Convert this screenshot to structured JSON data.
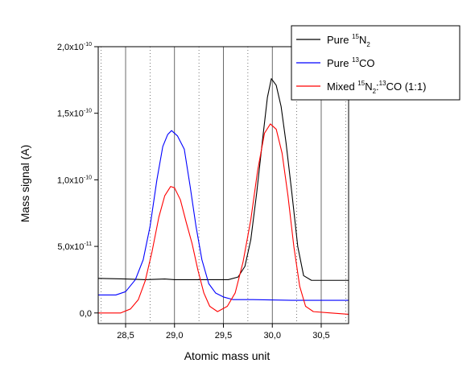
{
  "chart_data": {
    "type": "line",
    "title": "",
    "xlabel": "Atomic mass unit",
    "ylabel": "Mass signal (A)",
    "xlim": [
      28.22,
      30.78
    ],
    "ylim": [
      -8e-12,
      2e-10
    ],
    "x_ticks": [
      {
        "value": 28.5,
        "label": "28,5"
      },
      {
        "value": 29.0,
        "label": "29,0"
      },
      {
        "value": 29.5,
        "label": "29,5"
      },
      {
        "value": 30.0,
        "label": "30,0"
      },
      {
        "value": 30.5,
        "label": "30,5"
      }
    ],
    "y_ticks": [
      {
        "value": 0,
        "mantissa": "0,0",
        "exponent": ""
      },
      {
        "value": 5e-11,
        "mantissa": "5,0x10",
        "exponent": "-11"
      },
      {
        "value": 1e-10,
        "mantissa": "1,0x10",
        "exponent": "-10"
      },
      {
        "value": 1.5e-10,
        "mantissa": "1,5x10",
        "exponent": "-10"
      },
      {
        "value": 2e-10,
        "mantissa": "2,0x10",
        "exponent": "-10"
      }
    ],
    "grid": {
      "major_solid_x": [
        28.5,
        29.0,
        29.5,
        30.0,
        30.5
      ],
      "minor_dotted_x": [
        28.25,
        28.75,
        29.25,
        29.75,
        30.25,
        30.75
      ]
    },
    "legend": {
      "placement": "top-right",
      "entries": [
        {
          "parts": [
            {
              "t": "Pure "
            },
            {
              "t": "15",
              "sup": true
            },
            {
              "t": "N"
            },
            {
              "t": "2",
              "sub": true
            }
          ]
        },
        {
          "parts": [
            {
              "t": "Pure "
            },
            {
              "t": "13",
              "sup": true
            },
            {
              "t": "CO"
            }
          ]
        },
        {
          "parts": [
            {
              "t": "Mixed "
            },
            {
              "t": "15",
              "sup": true
            },
            {
              "t": "N"
            },
            {
              "t": "2",
              "sub": true
            },
            {
              "t": ":"
            },
            {
              "t": "13",
              "sup": true
            },
            {
              "t": "CO (1:1)"
            }
          ]
        }
      ]
    },
    "series": [
      {
        "color": "#000000",
        "points": [
          [
            28.22,
            2.6e-11
          ],
          [
            28.5,
            2.55e-11
          ],
          [
            28.7,
            2.5e-11
          ],
          [
            28.9,
            2.55e-11
          ],
          [
            29.0,
            2.5e-11
          ],
          [
            29.2,
            2.5e-11
          ],
          [
            29.4,
            2.5e-11
          ],
          [
            29.55,
            2.5e-11
          ],
          [
            29.65,
            2.7e-11
          ],
          [
            29.72,
            3.5e-11
          ],
          [
            29.78,
            5.5e-11
          ],
          [
            29.84,
            9e-11
          ],
          [
            29.9,
            1.3e-10
          ],
          [
            29.95,
            1.62e-10
          ],
          [
            29.99,
            1.76e-10
          ],
          [
            30.04,
            1.71e-10
          ],
          [
            30.09,
            1.55e-10
          ],
          [
            30.14,
            1.28e-10
          ],
          [
            30.2,
            9e-11
          ],
          [
            30.26,
            5e-11
          ],
          [
            30.32,
            2.8e-11
          ],
          [
            30.4,
            2.45e-11
          ],
          [
            30.6,
            2.45e-11
          ],
          [
            30.78,
            2.45e-11
          ]
        ]
      },
      {
        "color": "#0000ff",
        "points": [
          [
            28.22,
            1.35e-11
          ],
          [
            28.4,
            1.35e-11
          ],
          [
            28.5,
            1.6e-11
          ],
          [
            28.6,
            2.5e-11
          ],
          [
            28.68,
            4e-11
          ],
          [
            28.75,
            6.5e-11
          ],
          [
            28.82,
            1e-10
          ],
          [
            28.88,
            1.25e-10
          ],
          [
            28.93,
            1.34e-10
          ],
          [
            28.97,
            1.37e-10
          ],
          [
            29.03,
            1.33e-10
          ],
          [
            29.1,
            1.23e-10
          ],
          [
            29.16,
            9.5e-11
          ],
          [
            29.22,
            6.5e-11
          ],
          [
            29.28,
            4e-11
          ],
          [
            29.35,
            2.2e-11
          ],
          [
            29.42,
            1.5e-11
          ],
          [
            29.5,
            1.2e-11
          ],
          [
            29.6,
            1e-11
          ],
          [
            29.8,
            1e-11
          ],
          [
            30.2,
            9.5e-12
          ],
          [
            30.78,
            9.5e-12
          ]
        ]
      },
      {
        "color": "#ff0000",
        "points": [
          [
            28.22,
            0
          ],
          [
            28.45,
            0
          ],
          [
            28.55,
            3e-12
          ],
          [
            28.63,
            1e-11
          ],
          [
            28.7,
            2.4e-11
          ],
          [
            28.77,
            4.6e-11
          ],
          [
            28.84,
            7.2e-11
          ],
          [
            28.9,
            8.8e-11
          ],
          [
            28.96,
            9.5e-11
          ],
          [
            29.0,
            9.4e-11
          ],
          [
            29.06,
            8.5e-11
          ],
          [
            29.12,
            6.8e-11
          ],
          [
            29.18,
            5.2e-11
          ],
          [
            29.24,
            3.2e-11
          ],
          [
            29.3,
            1.5e-11
          ],
          [
            29.36,
            5e-12
          ],
          [
            29.44,
            1e-12
          ],
          [
            29.54,
            5e-12
          ],
          [
            29.62,
            1.5e-11
          ],
          [
            29.7,
            3.8e-11
          ],
          [
            29.78,
            7e-11
          ],
          [
            29.85,
            1.07e-10
          ],
          [
            29.92,
            1.35e-10
          ],
          [
            29.98,
            1.42e-10
          ],
          [
            30.04,
            1.38e-10
          ],
          [
            30.1,
            1.2e-10
          ],
          [
            30.16,
            8.8e-11
          ],
          [
            30.22,
            5e-11
          ],
          [
            30.28,
            2e-11
          ],
          [
            30.34,
            5e-12
          ],
          [
            30.42,
            1e-12
          ],
          [
            30.6,
            0
          ],
          [
            30.78,
            -1e-12
          ]
        ]
      }
    ]
  }
}
